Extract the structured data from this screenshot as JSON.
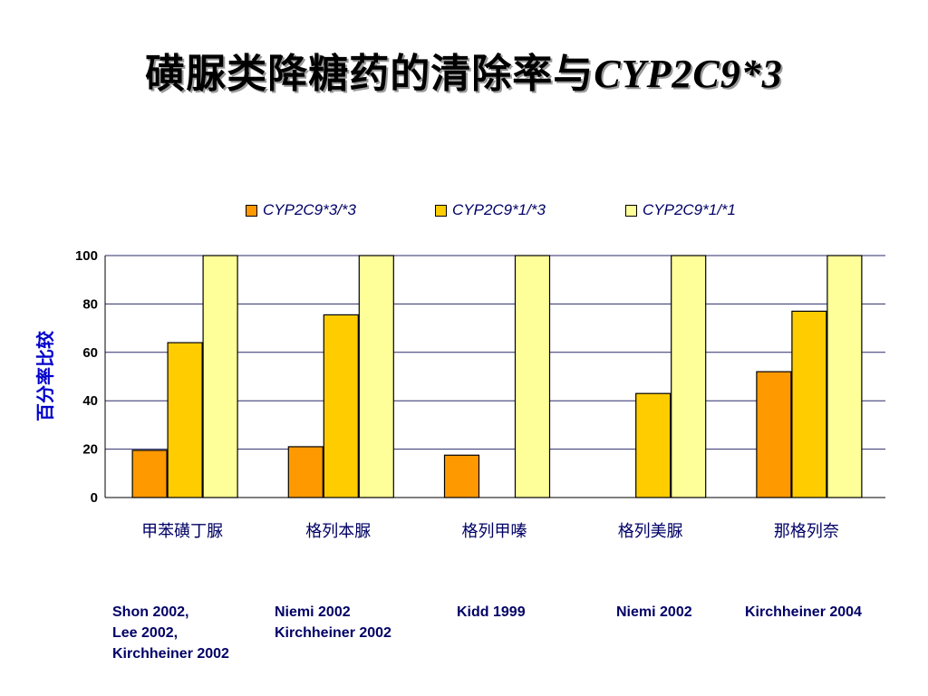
{
  "title": {
    "main": "磺脲类降糖药的清除率与",
    "gene": "CYP2C9*3"
  },
  "ylabel": "百分率比较",
  "colors": {
    "s1": "#ff9900",
    "s2": "#ffcc00",
    "s3": "#ffff99",
    "text": "#000066",
    "ylabel": "#0000cc"
  },
  "chart_data": {
    "type": "bar",
    "categories": [
      "甲苯磺丁脲",
      "格列本脲",
      "格列甲嗪",
      "格列美脲",
      "那格列奈"
    ],
    "series": [
      {
        "name": "CYP2C9*3/*3",
        "values": [
          19.5,
          21,
          17.5,
          null,
          52
        ]
      },
      {
        "name": "CYP2C9*1/*3",
        "values": [
          64,
          75.5,
          null,
          43,
          77
        ]
      },
      {
        "name": "CYP2C9*1/*1",
        "values": [
          100,
          100,
          100,
          100,
          100
        ]
      }
    ],
    "ylim": [
      0,
      100
    ],
    "yticks": [
      "0",
      "20",
      "40",
      "60",
      "80",
      "100"
    ],
    "grid": true,
    "legend_position": "top"
  },
  "references": [
    "Shon 2002,\nLee 2002,\nKirchheiner 2002",
    "Niemi 2002\nKirchheiner 2002",
    "Kidd 1999",
    "Niemi 2002",
    "Kirchheiner 2004"
  ]
}
